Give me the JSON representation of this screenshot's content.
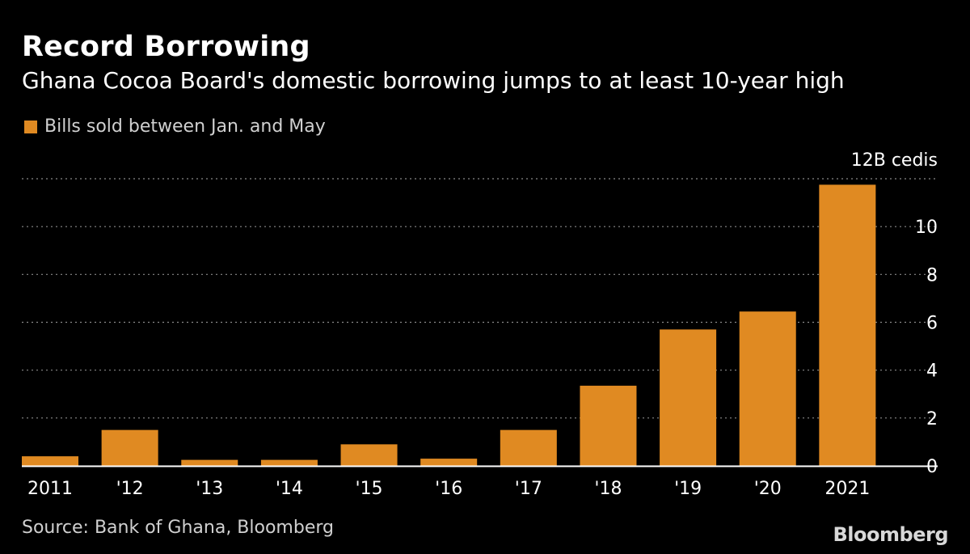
{
  "header": {
    "title": "Record Borrowing",
    "subtitle": "Ghana Cocoa Board's domestic borrowing jumps to at least 10-year high"
  },
  "legend": {
    "label": "Bills sold between Jan. and May"
  },
  "footer": {
    "source": "Source: Bank of Ghana, Bloomberg",
    "logo": "Bloomberg"
  },
  "colors": {
    "background": "#000000",
    "bar": "#e08a22",
    "grid": "#8a8a8a",
    "axis": "#ffffff",
    "text": "#ffffff",
    "muted_text": "#d0d0d0"
  },
  "chart_data": {
    "type": "bar",
    "categories": [
      "2011",
      "'12",
      "'13",
      "'14",
      "'15",
      "'16",
      "'17",
      "'18",
      "'19",
      "'20",
      "2021"
    ],
    "series": [
      {
        "name": "Bills sold between Jan. and May",
        "values": [
          0.4,
          1.5,
          0.25,
          0.25,
          0.9,
          0.3,
          1.5,
          3.35,
          5.7,
          6.45,
          11.75
        ]
      }
    ],
    "unit_label": "12B cedis",
    "y_ticks": [
      0,
      2,
      4,
      6,
      8,
      10,
      12
    ],
    "ylim": [
      0,
      12
    ],
    "grid": true,
    "grid_style": "dotted-horizontal",
    "y_axis_position": "right",
    "legend_position": "top-left"
  }
}
